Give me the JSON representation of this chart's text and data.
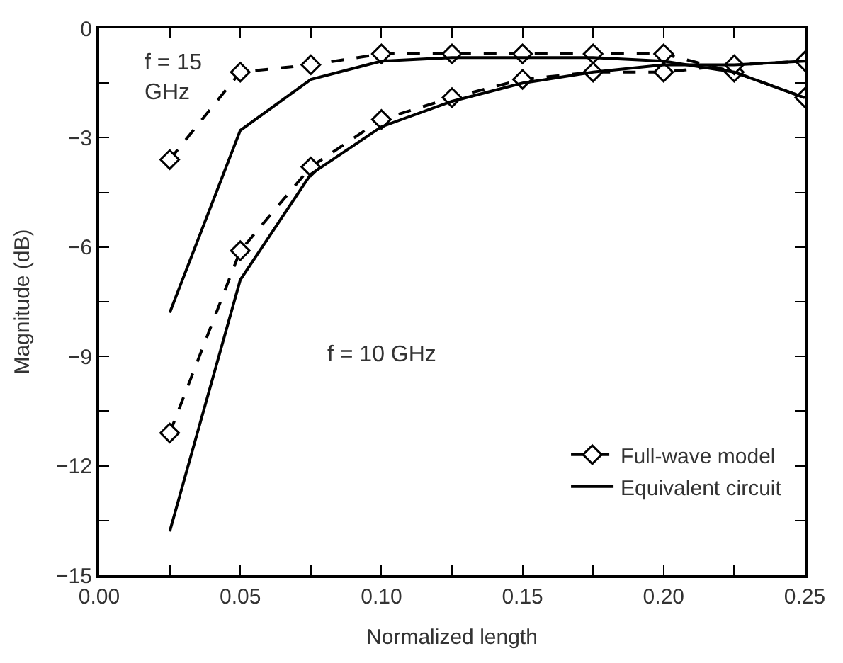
{
  "chart_data": {
    "type": "line",
    "xlabel": "Normalized length",
    "ylabel": "Magnitude (dB)",
    "x": [
      0.025,
      0.05,
      0.075,
      0.1,
      0.125,
      0.15,
      0.175,
      0.2,
      0.225,
      0.25
    ],
    "series": [
      {
        "name": "Full-wave model",
        "color": "#000000",
        "marker": "diamond",
        "line_style": "dashed",
        "values": [
          -3.6,
          -1.2,
          -1.0,
          -0.7,
          -0.7,
          -0.7,
          -0.7,
          -0.7,
          -1.2,
          -1.9
        ]
      },
      {
        "color": "#000000",
        "marker": "diamond",
        "line_style": "dashed",
        "values": [
          -11.1,
          -6.1,
          -3.8,
          -2.5,
          -1.9,
          -1.4,
          -1.2,
          -1.2,
          -1.0,
          -0.9
        ]
      },
      {
        "name": "Equivalent circuit",
        "color": "#000000",
        "marker": "none",
        "line_style": "solid",
        "values": [
          -7.8,
          -2.8,
          -1.4,
          -0.9,
          -0.8,
          -0.8,
          -0.8,
          -0.9,
          -1.2,
          -1.9
        ]
      },
      {
        "color": "#000000",
        "marker": "none",
        "line_style": "solid",
        "values": [
          -13.8,
          -6.9,
          -4.0,
          -2.7,
          -2.0,
          -1.5,
          -1.2,
          -1.0,
          -1.0,
          -0.9
        ]
      }
    ],
    "annotations": [
      "f = 15\nGHz",
      "f = 10 GHz"
    ],
    "xlim": [
      0,
      0.25
    ],
    "ylim": [
      -15,
      0
    ],
    "xticks": [
      {
        "value": 0,
        "label": "0.00"
      },
      {
        "value": 0.025,
        "label": null
      },
      {
        "value": 0.05,
        "label": "0.05"
      },
      {
        "value": 0.075,
        "label": null
      },
      {
        "value": 0.1,
        "label": "0.10"
      },
      {
        "value": 0.125,
        "label": null
      },
      {
        "value": 0.15,
        "label": "0.15"
      },
      {
        "value": 0.175,
        "label": null
      },
      {
        "value": 0.2,
        "label": "0.20"
      },
      {
        "value": 0.225,
        "label": null
      },
      {
        "value": 0.25,
        "label": "0.25"
      }
    ],
    "yticks": [
      {
        "value": -15,
        "label": "−15"
      },
      {
        "value": -13.5,
        "label": null
      },
      {
        "value": -12,
        "label": "−12"
      },
      {
        "value": -10.5,
        "label": null
      },
      {
        "value": -9,
        "label": "−9"
      },
      {
        "value": -7.5,
        "label": null
      },
      {
        "value": -6,
        "label": "−6"
      },
      {
        "value": -4.5,
        "label": null
      },
      {
        "value": -3,
        "label": "−3"
      },
      {
        "value": -1.5,
        "label": null
      },
      0
    ],
    "legend": "bottom right"
  }
}
